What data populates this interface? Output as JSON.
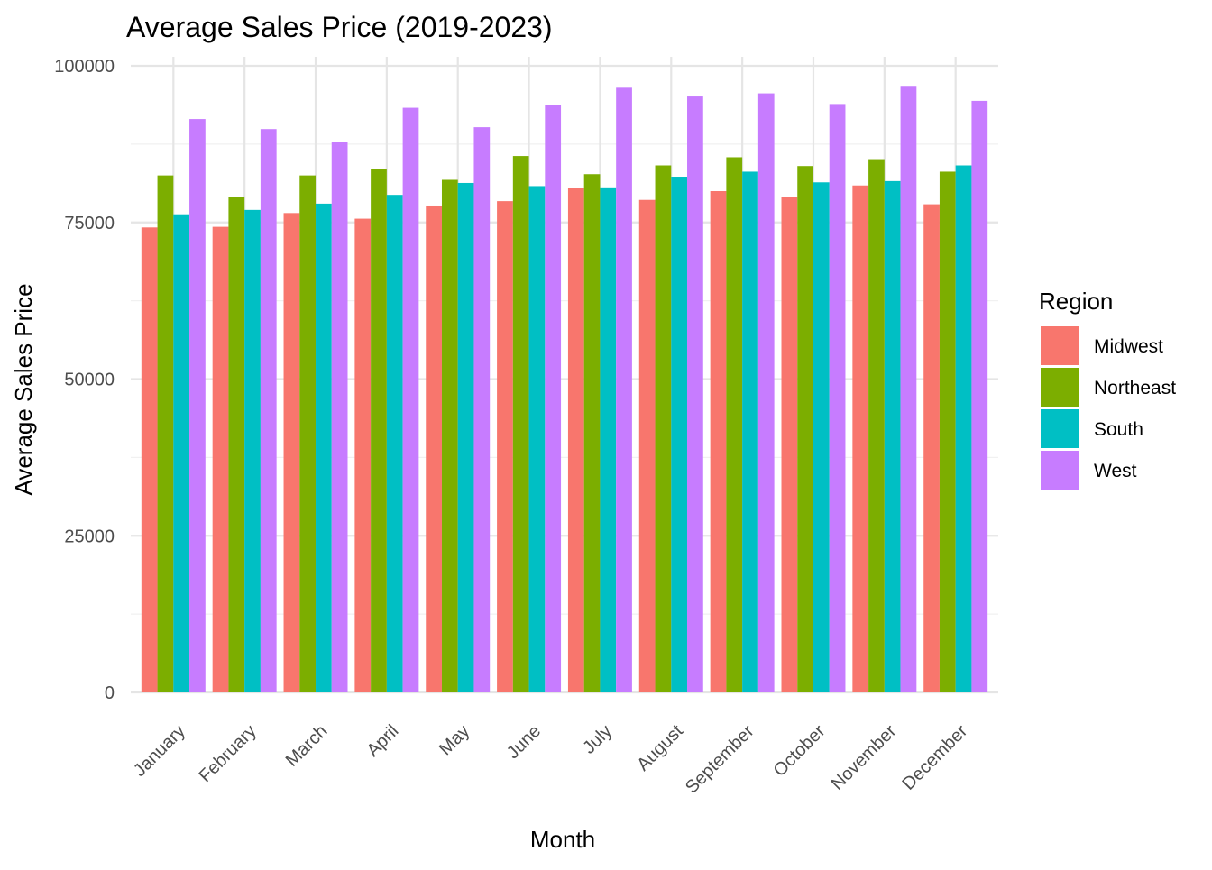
{
  "chart_data": {
    "type": "bar",
    "title": "Average Sales Price (2019-2023)",
    "xlabel": "Month",
    "ylabel": "Average Sales Price",
    "ylim": [
      0,
      100000
    ],
    "y_ticks": [
      "0",
      "25000",
      "50000",
      "75000",
      "100000"
    ],
    "y_tick_values": [
      0,
      25000,
      50000,
      75000,
      100000
    ],
    "y_minor_tick_values": [
      12500,
      37500,
      62500,
      87500
    ],
    "grid": true,
    "legend": {
      "title": "Region",
      "position": "right"
    },
    "categories": [
      "January",
      "February",
      "March",
      "April",
      "May",
      "June",
      "July",
      "August",
      "September",
      "October",
      "November",
      "December"
    ],
    "series": [
      {
        "name": "Midwest",
        "color": "#F8766D",
        "values": [
          74200,
          74300,
          76500,
          75600,
          77700,
          78400,
          80500,
          78600,
          80000,
          79100,
          80900,
          77900
        ]
      },
      {
        "name": "Northeast",
        "color": "#7CAE00",
        "values": [
          82500,
          79000,
          82500,
          83500,
          81800,
          85600,
          82700,
          84100,
          85400,
          84000,
          85100,
          83100
        ]
      },
      {
        "name": "South",
        "color": "#00BFC4",
        "values": [
          76300,
          77000,
          78000,
          79400,
          81300,
          80800,
          80600,
          82300,
          83100,
          81400,
          81600,
          84100
        ]
      },
      {
        "name": "West",
        "color": "#C77CFF",
        "values": [
          91500,
          89900,
          87900,
          93300,
          90200,
          93800,
          96500,
          95100,
          95600,
          93900,
          96800,
          94400
        ]
      }
    ]
  }
}
